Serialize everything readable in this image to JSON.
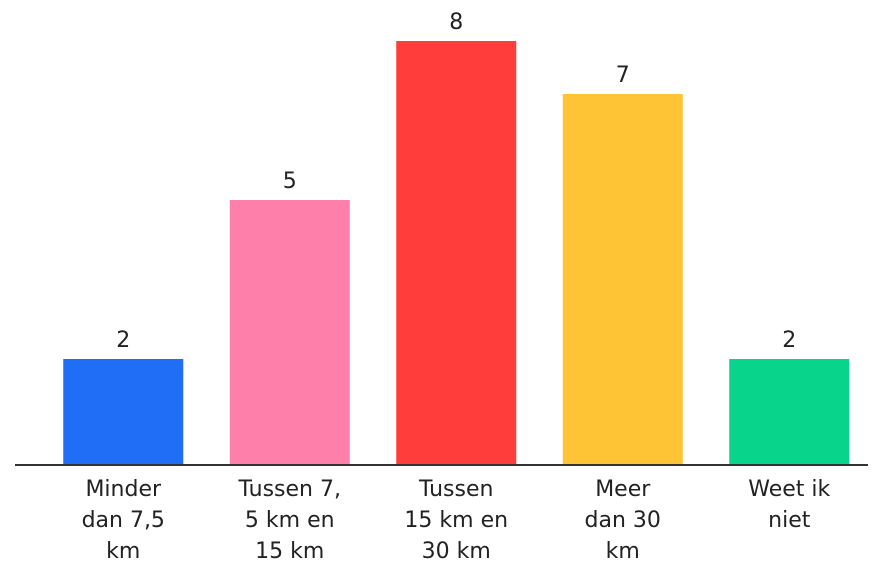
{
  "chart_data": {
    "type": "bar",
    "categories": [
      "Minder\ndan 7,5\nkm",
      "Tussen 7,\n5 km en\n15 km",
      "Tussen\n15 km en\n30 km",
      "Meer\ndan 30\nkm",
      "Weet ik\nniet"
    ],
    "values": [
      2,
      5,
      8,
      7,
      2
    ],
    "colors": [
      "#1f6ef5",
      "#ff7fab",
      "#ff3d3a",
      "#ffc336",
      "#08d48b"
    ]
  }
}
